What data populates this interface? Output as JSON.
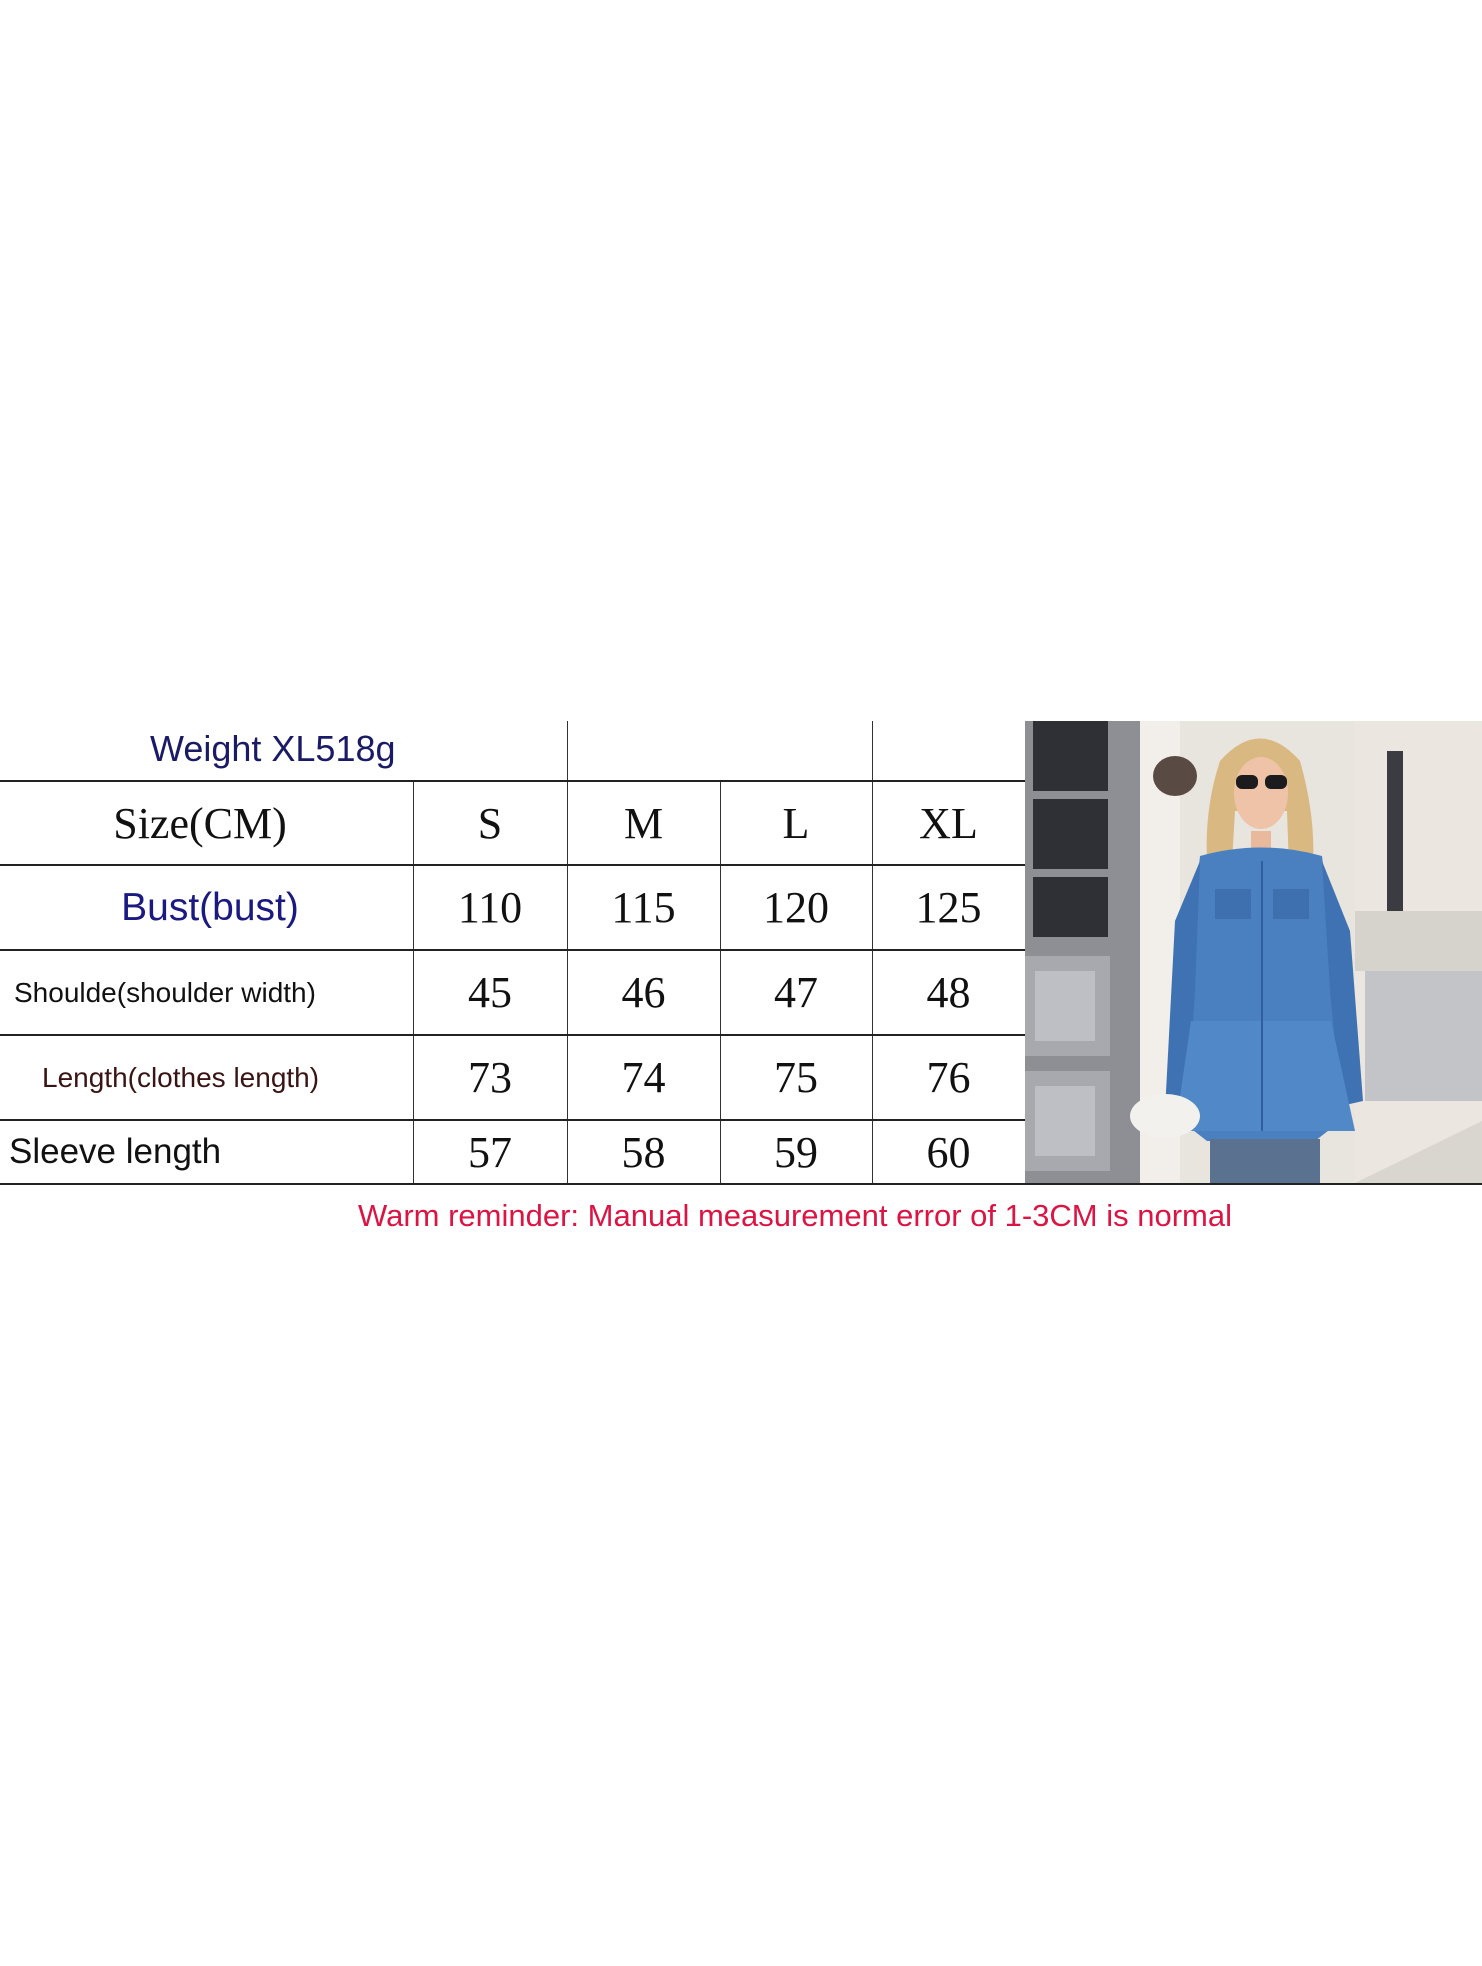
{
  "weight_label": "Weight XL518g",
  "table": {
    "header": {
      "label": "Size(CM)",
      "sizes": [
        "S",
        "M",
        "L",
        "XL"
      ]
    },
    "rows": [
      {
        "label": "Bust(bust)",
        "values": [
          "110",
          "115",
          "120",
          "125"
        ]
      },
      {
        "label": "Shoulde(shoulder width)",
        "values": [
          "45",
          "46",
          "47",
          "48"
        ]
      },
      {
        "label": "Length(clothes length)",
        "values": [
          "73",
          "74",
          "75",
          "76"
        ]
      },
      {
        "label": "Sleeve length",
        "values": [
          "57",
          "58",
          "59",
          "60"
        ]
      }
    ]
  },
  "reminder": "Warm reminder: Manual measurement error of 1-3CM is normal",
  "colors": {
    "weight_text": "#1a1a66",
    "bust_label": "#1a1a80",
    "length_label": "#3a1414",
    "reminder_text": "#dc1444",
    "denim": "#4a7fc0"
  }
}
